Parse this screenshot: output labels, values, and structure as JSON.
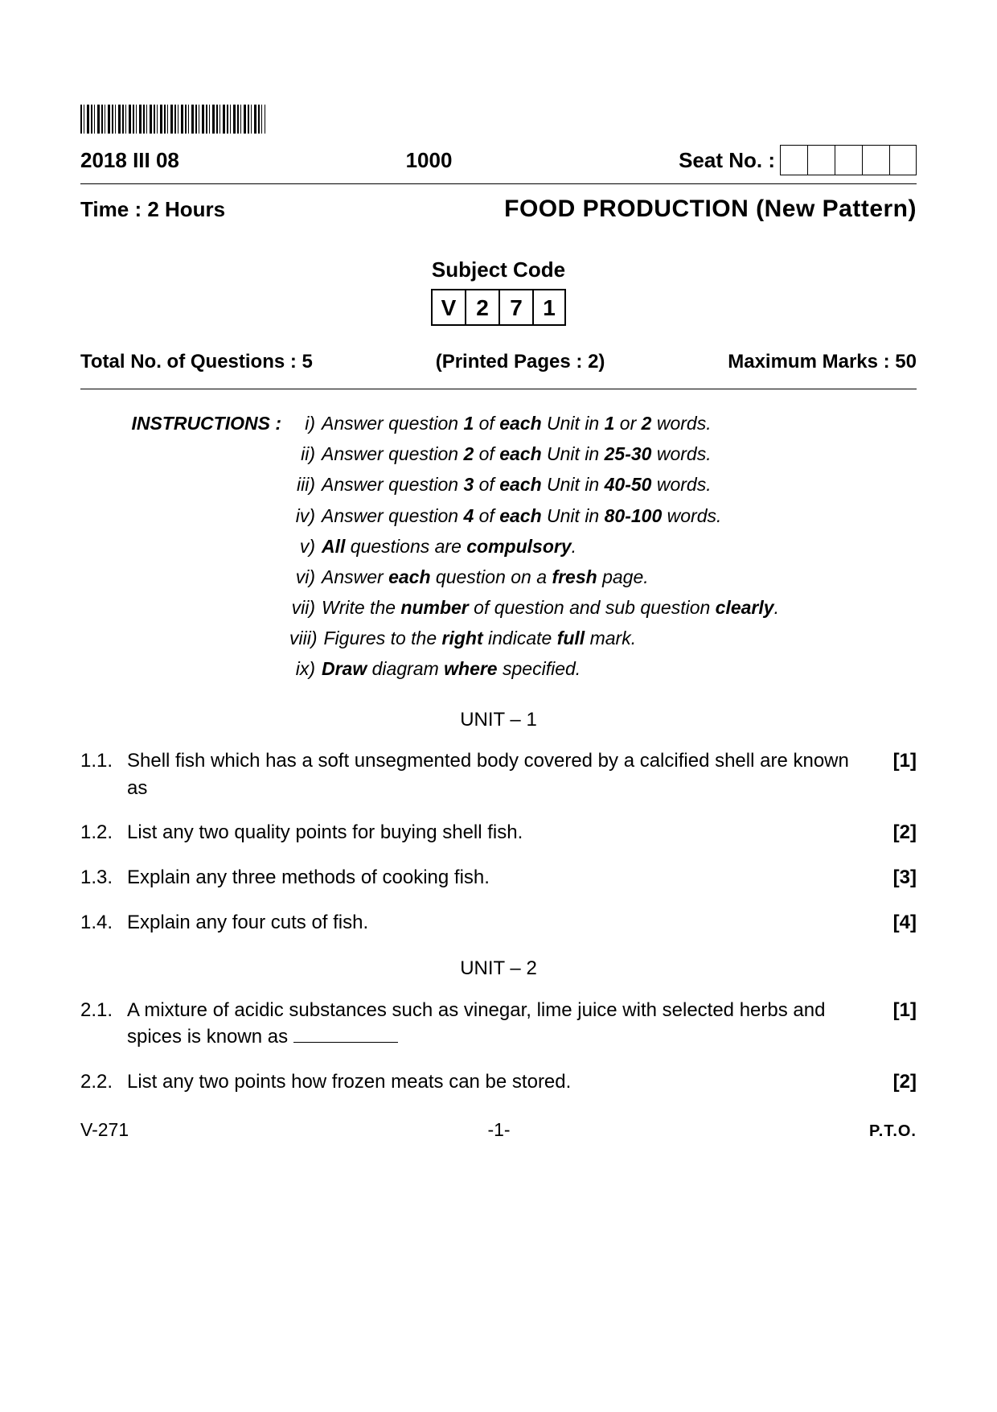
{
  "header": {
    "date_code": "2018 III 08",
    "center_number": "1000",
    "seat_label": "Seat No. :",
    "seat_box_count": 5,
    "time": "Time : 2 Hours",
    "title": "FOOD  PRODUCTION  (New  Pattern)",
    "subject_code_label": "Subject  Code",
    "subject_code": [
      "V",
      "2",
      "7",
      "1"
    ],
    "total_questions": "Total No. of Questions : 5",
    "printed_pages": "(Printed Pages : 2)",
    "max_marks": "Maximum Marks : 50"
  },
  "instructions": {
    "label": "INSTRUCTIONS :",
    "items": [
      {
        "roman": "i)",
        "html": "Answer question <b>1</b> of <b>each</b> Unit in <b>1</b> or <b>2</b> words."
      },
      {
        "roman": "ii)",
        "html": "Answer question <b>2</b> of <b>each</b> Unit in <b>25-30</b> words."
      },
      {
        "roman": "iii)",
        "html": "Answer question <b>3</b> of <b>each</b> Unit in <b>40-50</b> words."
      },
      {
        "roman": "iv)",
        "html": "Answer question <b>4</b> of <b>each</b> Unit in <b>80-100</b> words."
      },
      {
        "roman": "v)",
        "html": "<b>All</b> questions are <b>compulsory</b>."
      },
      {
        "roman": "vi)",
        "html": "Answer <b>each</b> question on a <b>fresh</b> page."
      },
      {
        "roman": "vii)",
        "html": "Write the <b>number</b> of question and sub question <b>clearly</b>."
      },
      {
        "roman": "viii)",
        "html": "Figures to the <b>right</b> indicate <b>full</b> mark."
      },
      {
        "roman": "ix)",
        "html": "<b>Draw</b> diagram <b>where</b> specified."
      }
    ]
  },
  "units": [
    {
      "heading": "UNIT – 1",
      "questions": [
        {
          "num": "1.1.",
          "text": "Shell fish which has a soft unsegmented body covered by a calcified shell are known as",
          "mark": "[1]"
        },
        {
          "num": "1.2.",
          "text": "List any two quality points for buying shell fish.",
          "mark": "[2]"
        },
        {
          "num": "1.3.",
          "text": "Explain any three methods of cooking fish.",
          "mark": "[3]"
        },
        {
          "num": "1.4.",
          "text": "Explain any four cuts of fish.",
          "mark": "[4]"
        }
      ]
    },
    {
      "heading": "UNIT – 2",
      "questions": [
        {
          "num": "2.1.",
          "text": "A mixture of acidic substances such as vinegar, lime juice with selected herbs and spices is known as ",
          "blank": true,
          "mark": "[1]"
        },
        {
          "num": "2.2.",
          "text": "List any two points how frozen meats can be stored.",
          "mark": "[2]"
        }
      ]
    }
  ],
  "footer": {
    "left": "V-271",
    "center": "-1-",
    "right": "P.T.O."
  }
}
